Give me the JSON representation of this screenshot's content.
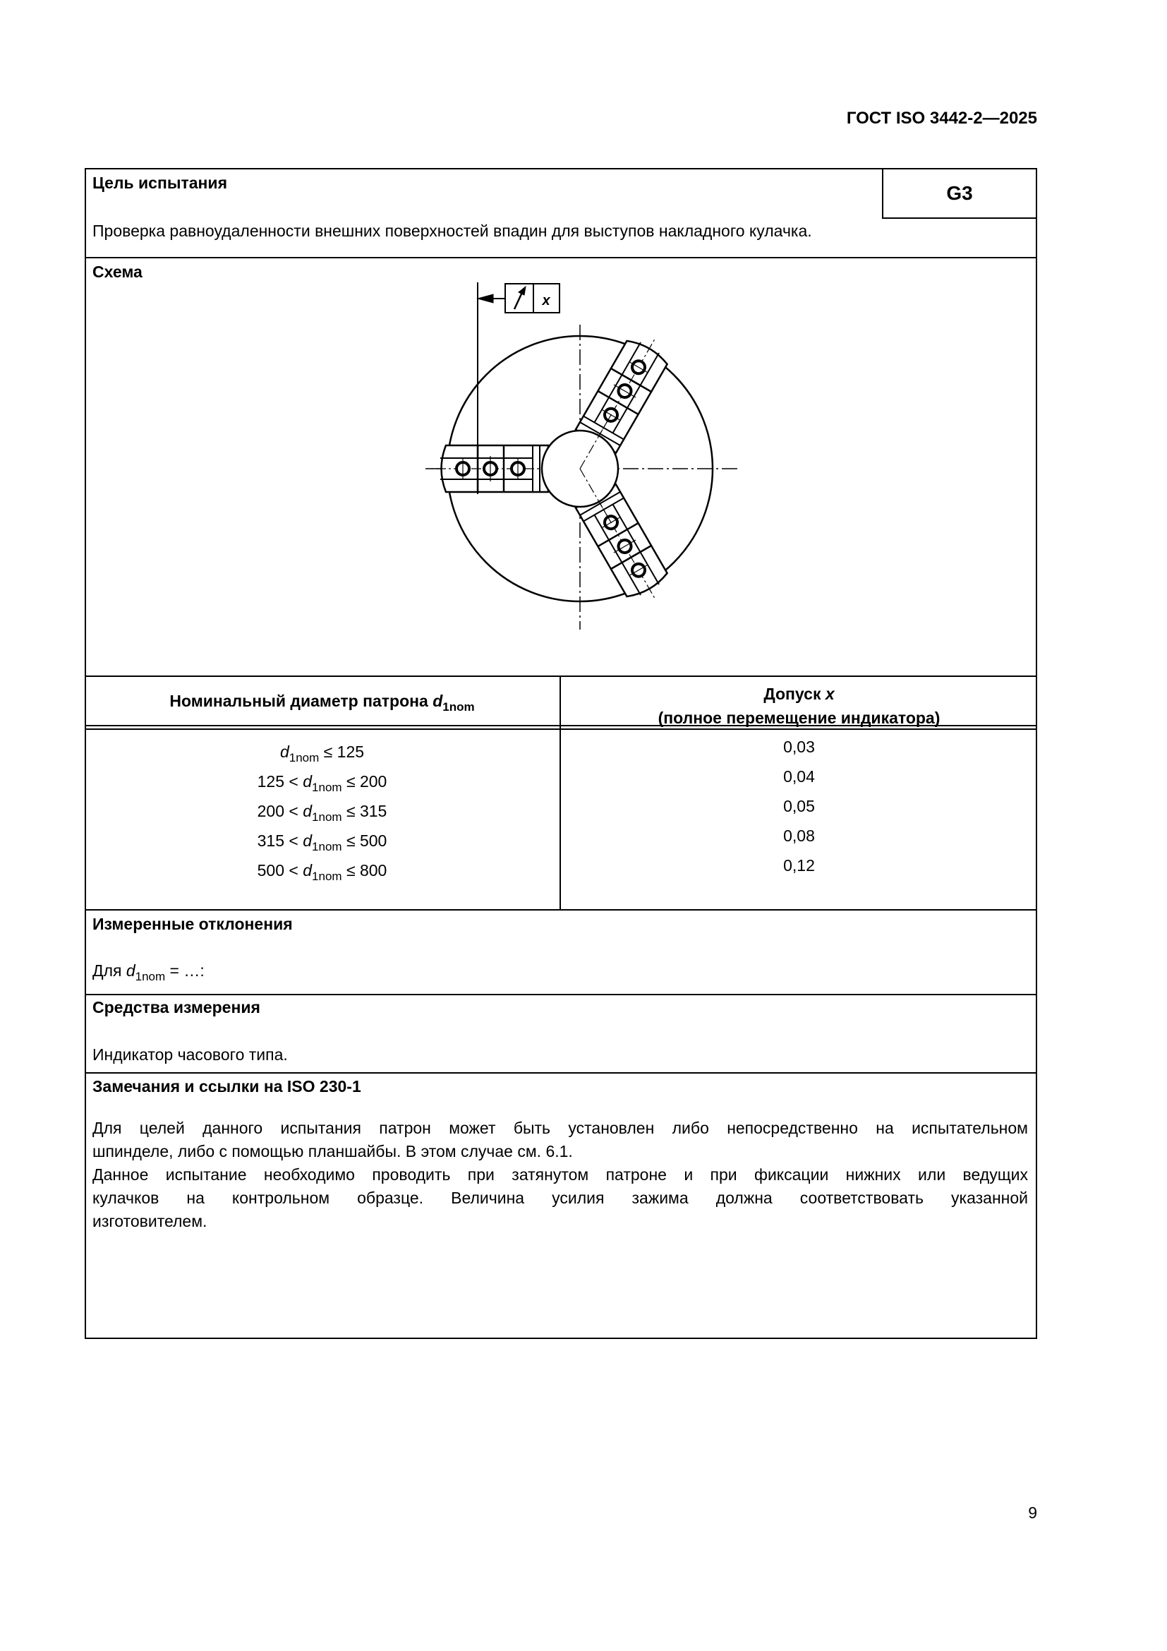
{
  "header": {
    "doc_id": "ГОСТ ISO 3442-2—2025"
  },
  "test": {
    "purpose_label": "Цель испытания",
    "code": "G3",
    "purpose_text": "Проверка равноудаленности внешних поверхностей впадин для выступов накладного кулачка.",
    "scheme_label": "Схема",
    "tolerance_symbol": "x"
  },
  "table": {
    "col1_header": "Номинальный диаметр патрона ",
    "col1_var": "d",
    "col1_sub": "1nom",
    "col2_header_line1": "Допуск ",
    "col2_header_var": "x",
    "col2_header_line2": "(полное перемещение индикатора)",
    "rows": [
      {
        "pre": "",
        "var": "d",
        "sub": "1nom",
        "post": " ≤ 125",
        "tol": "0,03"
      },
      {
        "pre": "125 < ",
        "var": "d",
        "sub": "1nom",
        "post": " ≤ 200",
        "tol": "0,04"
      },
      {
        "pre": "200 < ",
        "var": "d",
        "sub": "1nom",
        "post": " ≤ 315",
        "tol": "0,05"
      },
      {
        "pre": "315 < ",
        "var": "d",
        "sub": "1nom",
        "post": " ≤ 500",
        "tol": "0,08"
      },
      {
        "pre": "500 < ",
        "var": "d",
        "sub": "1nom",
        "post": " ≤ 800",
        "tol": "0,12"
      }
    ]
  },
  "measured": {
    "label": "Измеренные отклонения",
    "pre": "Для ",
    "var": "d",
    "sub": "1nom",
    "post": " = …:"
  },
  "instruments": {
    "label": "Средства измерения",
    "text": "Индикатор часового типа."
  },
  "remarks": {
    "label": "Замечания и ссылки на ISO 230-1",
    "lines": [
      "Для целей данного испытания патрон может быть установлен либо непосредственно на испытательном",
      "шпинделе, либо с помощью планшайбы. В этом случае см. 6.1.",
      "Данное испытание необходимо проводить при затянутом патроне и при фиксации нижних или ведущих",
      "кулачков на контрольном образце. Величина усилия зажима должна соответствовать указанной",
      "изготовителем."
    ]
  },
  "page_number": "9"
}
